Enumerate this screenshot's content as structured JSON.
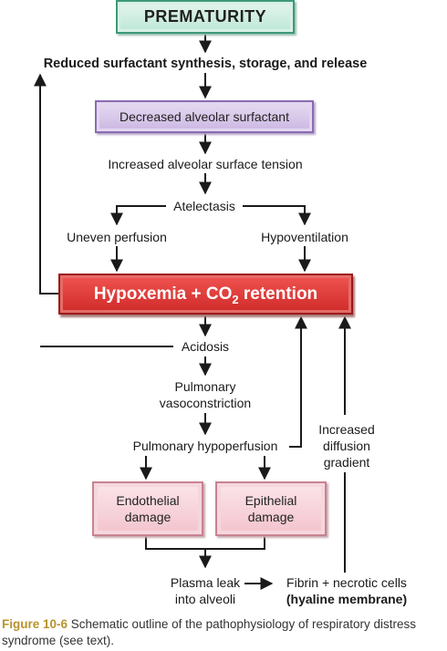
{
  "nodes": {
    "prematurity": "PREMATURITY",
    "reduced_surfactant": "Reduced surfactant synthesis, storage, and release",
    "decreased_surfactant": "Decreased alveolar surfactant",
    "increased_tension": "Increased alveolar surface tension",
    "atelectasis": "Atelectasis",
    "uneven_perfusion": "Uneven perfusion",
    "hypoventilation": "Hypoventilation",
    "hypoxemia_prefix": "Hypoxemia + CO",
    "hypoxemia_sub": "2",
    "hypoxemia_suffix": " retention",
    "acidosis": "Acidosis",
    "vasoconstriction_line1": "Pulmonary",
    "vasoconstriction_line2": "vasoconstriction",
    "hypoperfusion": "Pulmonary hypoperfusion",
    "endothelial_line1": "Endothelial",
    "endothelial_line2": "damage",
    "epithelial_line1": "Epithelial",
    "epithelial_line2": "damage",
    "diffusion_line1": "Increased",
    "diffusion_line2": "diffusion",
    "diffusion_line3": "gradient",
    "plasma_line1": "Plasma leak",
    "plasma_line2": "into alveoli",
    "fibrin_line1": "Fibrin + necrotic cells",
    "fibrin_line2": "(hyaline membrane)"
  },
  "caption": {
    "figure_label": "Figure 10-6",
    "text": " Schematic outline of the pathophysiology of respiratory distress syndrome (see text)."
  },
  "colors": {
    "arrow": "#1a1a1a",
    "prematurity_border": "#3d9a78",
    "surfactant_border": "#8b6bb3",
    "hypoxemia_fill": "#d93a36",
    "damage_fill": "#f6d0d8",
    "figure_label": "#b8922c"
  }
}
